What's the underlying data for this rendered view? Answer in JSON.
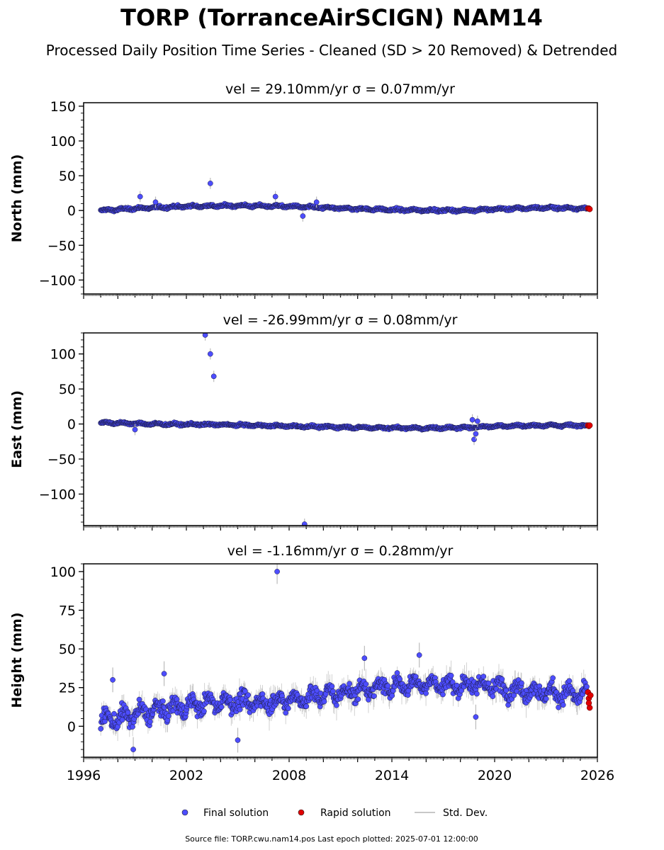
{
  "title": "TORP (TorranceAirSCIGN) NAM14",
  "subtitle": "Processed Daily Position Time Series - Cleaned (SD > 20 Removed) & Detrended",
  "footer": "Source file: TORP.cwu.nam14.pos  Last epoch plotted: 2025-07-01 12:00:00",
  "legend": {
    "final": "Final solution",
    "rapid": "Rapid solution",
    "stddev": "Std. Dev."
  },
  "colors": {
    "final": "#4d4dff",
    "rapid": "#e00000",
    "stddev": "#b0b0b0"
  },
  "chart_data": [
    {
      "type": "scatter",
      "component": "north",
      "title": "vel = 29.10mm/yr   σ = 0.07mm/yr",
      "ylabel": "North (mm)",
      "xlim": [
        1996,
        2026
      ],
      "ylim": [
        -120,
        155
      ],
      "yticks": [
        -100,
        -50,
        0,
        50,
        100,
        150
      ],
      "xticks": [],
      "trend": [
        [
          1997.0,
          0
        ],
        [
          1999,
          3
        ],
        [
          2002,
          6
        ],
        [
          2005,
          7
        ],
        [
          2008,
          6
        ],
        [
          2010,
          4
        ],
        [
          2014,
          1
        ],
        [
          2018,
          0
        ],
        [
          2020,
          2
        ],
        [
          2023,
          4
        ],
        [
          2025.5,
          3
        ]
      ],
      "noise_sd": 1.8,
      "stddev_sd": 4,
      "outliers": [
        [
          1999.3,
          20
        ],
        [
          2003.4,
          39
        ],
        [
          2007.2,
          20
        ],
        [
          2000.2,
          12
        ],
        [
          2008.8,
          -8
        ],
        [
          2009.6,
          12
        ]
      ],
      "rapid": [
        [
          2025.45,
          3
        ],
        [
          2025.5,
          3
        ],
        [
          2025.55,
          2
        ]
      ]
    },
    {
      "type": "scatter",
      "component": "east",
      "title": "vel = -26.99mm/yr   σ = 0.08mm/yr",
      "ylabel": "East (mm)",
      "xlim": [
        1996,
        2026
      ],
      "ylim": [
        -145,
        130
      ],
      "yticks": [
        -100,
        -50,
        0,
        50,
        100
      ],
      "xticks": [],
      "trend": [
        [
          1997.0,
          2
        ],
        [
          2000,
          0
        ],
        [
          2004,
          -1
        ],
        [
          2008,
          -3
        ],
        [
          2012,
          -5
        ],
        [
          2016,
          -6
        ],
        [
          2018.5,
          -5
        ],
        [
          2020,
          -3
        ],
        [
          2023,
          -2
        ],
        [
          2025.5,
          -2
        ]
      ],
      "noise_sd": 1.6,
      "stddev_sd": 4,
      "outliers": [
        [
          2003.1,
          127
        ],
        [
          2003.4,
          100
        ],
        [
          2003.6,
          68
        ],
        [
          2008.9,
          -143
        ],
        [
          1999.0,
          -8
        ],
        [
          2018.7,
          6
        ],
        [
          2018.8,
          -22
        ],
        [
          2018.9,
          -14
        ],
        [
          2019.0,
          4
        ]
      ],
      "rapid": [
        [
          2025.45,
          -2
        ],
        [
          2025.5,
          -3
        ],
        [
          2025.55,
          -2
        ]
      ]
    },
    {
      "type": "scatter",
      "component": "height",
      "title": "vel = -1.16mm/yr   σ = 0.28mm/yr",
      "ylabel": "Height (mm)",
      "xlim": [
        1996,
        2026
      ],
      "ylim": [
        -20,
        105
      ],
      "yticks": [
        0,
        25,
        50,
        75,
        100
      ],
      "xticks": [
        1996,
        2002,
        2008,
        2014,
        2020,
        2026
      ],
      "trend": [
        [
          1997.0,
          4
        ],
        [
          1998,
          5
        ],
        [
          2000,
          10
        ],
        [
          2002,
          13
        ],
        [
          2004,
          16
        ],
        [
          2006,
          15
        ],
        [
          2008,
          17
        ],
        [
          2010,
          20
        ],
        [
          2012,
          23
        ],
        [
          2014,
          26
        ],
        [
          2016,
          28
        ],
        [
          2018,
          26
        ],
        [
          2019,
          27
        ],
        [
          2021,
          24
        ],
        [
          2023,
          22
        ],
        [
          2025.5,
          20
        ]
      ],
      "noise_sd": 6.0,
      "stddev_sd": 9,
      "outliers": [
        [
          2007.3,
          100
        ],
        [
          1997.7,
          30
        ],
        [
          2000.7,
          34
        ],
        [
          2012.4,
          44
        ],
        [
          1998.9,
          -15
        ],
        [
          2005.0,
          -9
        ],
        [
          2018.9,
          6
        ],
        [
          2015.6,
          46
        ]
      ],
      "rapid": [
        [
          2025.45,
          22
        ],
        [
          2025.5,
          18
        ],
        [
          2025.55,
          12
        ],
        [
          2025.5,
          15
        ],
        [
          2025.6,
          20
        ]
      ]
    }
  ]
}
